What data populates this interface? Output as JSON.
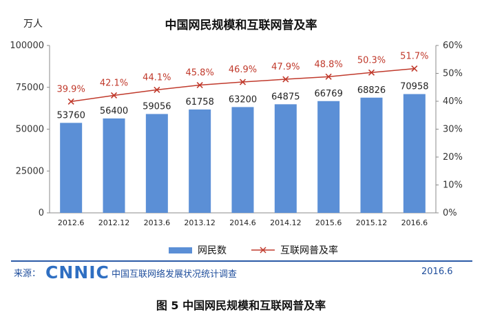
{
  "chart_data": {
    "type": "bar",
    "title": "中国网民规模和互联网普及率",
    "y_unit_label": "万人",
    "categories": [
      "2012.6",
      "2012.12",
      "2013.6",
      "2013.12",
      "2014.6",
      "2014.12",
      "2015.6",
      "2015.12",
      "2016.6"
    ],
    "series": [
      {
        "name": "网民数",
        "type": "bar",
        "axis": "left",
        "color": "#5b8fd6",
        "values": [
          53760,
          56400,
          59056,
          61758,
          63200,
          64875,
          66769,
          68826,
          70958
        ],
        "labels": [
          "53760",
          "56400",
          "59056",
          "61758",
          "63200",
          "64875",
          "66769",
          "68826",
          "70958"
        ]
      },
      {
        "name": "互联网普及率",
        "type": "line",
        "axis": "right",
        "color": "#c0392b",
        "values": [
          39.9,
          42.1,
          44.1,
          45.8,
          46.9,
          47.9,
          48.8,
          50.3,
          51.7
        ],
        "labels": [
          "39.9%",
          "42.1%",
          "44.1%",
          "45.8%",
          "46.9%",
          "47.9%",
          "48.8%",
          "50.3%",
          "51.7%"
        ]
      }
    ],
    "y_left": {
      "min": 0,
      "max": 100000,
      "ticks": [
        0,
        25000,
        50000,
        75000,
        100000
      ],
      "tick_labels": [
        "0",
        "25000",
        "50000",
        "75000",
        "100000"
      ]
    },
    "y_right": {
      "min": 0,
      "max": 60,
      "ticks": [
        0,
        10,
        20,
        30,
        40,
        50,
        60
      ],
      "tick_labels": [
        "0%",
        "10%",
        "20%",
        "30%",
        "40%",
        "50%",
        "60%"
      ]
    },
    "legend_position": "bottom",
    "grid": false
  },
  "footer": {
    "source_label": "来源：",
    "logo_text": "CNNIC",
    "source_text": "中国互联网络发展状况统计调查",
    "date": "2016.6"
  },
  "caption": "图 5 中国网民规模和互联网普及率"
}
